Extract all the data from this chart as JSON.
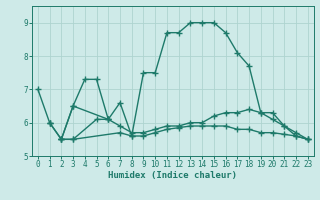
{
  "x": [
    0,
    1,
    2,
    3,
    4,
    5,
    6,
    7,
    8,
    9,
    10,
    11,
    12,
    13,
    14,
    15,
    16,
    17,
    18,
    19,
    20,
    21,
    22,
    23
  ],
  "series1": [
    7.0,
    6.0,
    null,
    null,
    null,
    null,
    null,
    null,
    null,
    null,
    null,
    null,
    null,
    null,
    null,
    null,
    null,
    null,
    null,
    null,
    null,
    null,
    null,
    null
  ],
  "series2": [
    null,
    6.0,
    5.5,
    6.5,
    7.3,
    7.3,
    6.1,
    6.6,
    5.6,
    7.5,
    7.5,
    8.7,
    8.7,
    9.0,
    9.0,
    9.0,
    8.7,
    8.1,
    7.7,
    6.3,
    6.3,
    5.9,
    5.7,
    5.5
  ],
  "series3": [
    null,
    null,
    5.5,
    6.5,
    null,
    null,
    6.1,
    null,
    null,
    null,
    null,
    null,
    null,
    null,
    null,
    null,
    null,
    null,
    null,
    null,
    null,
    null,
    null,
    null
  ],
  "series4": [
    null,
    6.0,
    5.5,
    5.5,
    null,
    6.1,
    6.1,
    5.9,
    5.7,
    5.7,
    5.8,
    5.9,
    5.9,
    6.0,
    6.0,
    6.2,
    6.3,
    6.3,
    6.4,
    6.3,
    6.1,
    5.9,
    5.6,
    5.5
  ],
  "series5": [
    null,
    null,
    5.5,
    5.5,
    null,
    null,
    null,
    5.7,
    5.6,
    5.6,
    5.7,
    5.8,
    5.85,
    5.9,
    5.9,
    5.9,
    5.9,
    5.8,
    5.8,
    5.7,
    5.7,
    5.65,
    5.6,
    5.5
  ],
  "xlabel": "Humidex (Indice chaleur)",
  "xlim": [
    -0.5,
    23.5
  ],
  "ylim": [
    5.0,
    9.5
  ],
  "yticks": [
    5,
    6,
    7,
    8,
    9
  ],
  "xticks": [
    0,
    1,
    2,
    3,
    4,
    5,
    6,
    7,
    8,
    9,
    10,
    11,
    12,
    13,
    14,
    15,
    16,
    17,
    18,
    19,
    20,
    21,
    22,
    23
  ],
  "line_color": "#1e7a6a",
  "bg_color": "#ceeae8",
  "grid_color": "#aed4d0",
  "marker": "+",
  "marker_size": 4,
  "linewidth": 1.0
}
